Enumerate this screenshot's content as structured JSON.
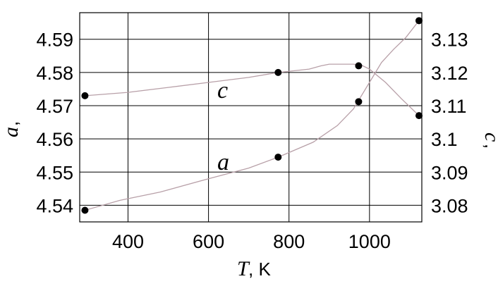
{
  "chart_data": {
    "type": "line",
    "xlabel": {
      "var": "T",
      "unit": ", K"
    },
    "ylabel_left": {
      "var": "a",
      "unit": ","
    },
    "ylabel_right": {
      "var": "c",
      "unit": ","
    },
    "xlim": [
      280,
      1130
    ],
    "ylim_left": [
      4.535,
      4.598
    ],
    "ylim_right": [
      3.075,
      3.138
    ],
    "grid": true,
    "x_ticks": [
      400,
      600,
      800,
      1000
    ],
    "x_tick_labels": [
      "400",
      "600",
      "800",
      "1000"
    ],
    "y_left_ticks": [
      4.54,
      4.55,
      4.56,
      4.57,
      4.58,
      4.59
    ],
    "y_left_tick_labels": [
      "4.54",
      "4.55",
      "4.56",
      "4.57",
      "4.58",
      "4.59"
    ],
    "y_right_ticks": [
      3.08,
      3.09,
      3.1,
      3.11,
      3.12,
      3.13
    ],
    "y_right_tick_labels": [
      "3.08",
      "3.09",
      "3.1",
      "3.11",
      "3.12",
      "3.13"
    ],
    "series": [
      {
        "name": "a",
        "axis": "left",
        "points": [
          [
            293,
            4.5385
          ],
          [
            773,
            4.5545
          ],
          [
            973,
            4.5712
          ],
          [
            1123,
            4.5956
          ]
        ],
        "curve": [
          [
            293,
            4.5385
          ],
          [
            380,
            4.5415
          ],
          [
            480,
            4.544
          ],
          [
            600,
            4.548
          ],
          [
            700,
            4.5512
          ],
          [
            773,
            4.5545
          ],
          [
            860,
            4.559
          ],
          [
            920,
            4.564
          ],
          [
            960,
            4.569
          ],
          [
            1000,
            4.577
          ],
          [
            1030,
            4.583
          ],
          [
            1060,
            4.587
          ],
          [
            1090,
            4.5905
          ],
          [
            1123,
            4.5956
          ]
        ]
      },
      {
        "name": "c",
        "axis": "right",
        "points": [
          [
            293,
            3.113
          ],
          [
            773,
            3.12
          ],
          [
            973,
            3.122
          ],
          [
            1123,
            3.107
          ]
        ],
        "curve": [
          [
            293,
            3.113
          ],
          [
            400,
            3.114
          ],
          [
            500,
            3.1155
          ],
          [
            600,
            3.117
          ],
          [
            700,
            3.1185
          ],
          [
            773,
            3.12
          ],
          [
            850,
            3.121
          ],
          [
            880,
            3.122
          ],
          [
            900,
            3.1225
          ],
          [
            960,
            3.1225
          ],
          [
            980,
            3.1222
          ],
          [
            1000,
            3.121
          ],
          [
            1040,
            3.117
          ],
          [
            1080,
            3.112
          ],
          [
            1123,
            3.107
          ]
        ]
      }
    ]
  }
}
